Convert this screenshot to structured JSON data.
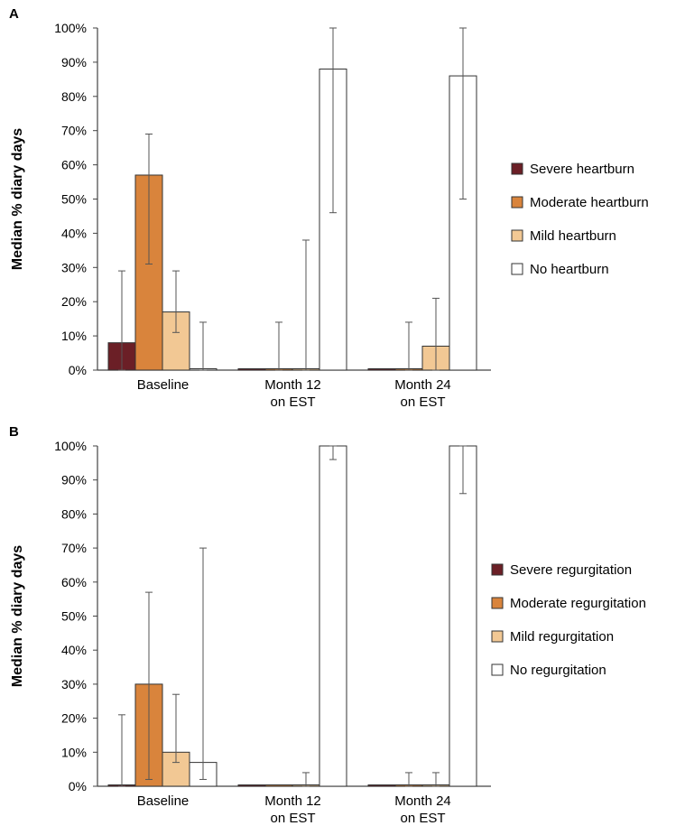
{
  "chart_data": [
    {
      "panel_label": "A",
      "type": "bar",
      "ylabel": "Median % diary days",
      "ylim": [
        0,
        100
      ],
      "yticks": [
        "0%",
        "10%",
        "20%",
        "30%",
        "40%",
        "50%",
        "60%",
        "70%",
        "80%",
        "90%",
        "100%"
      ],
      "categories": [
        [
          "Baseline"
        ],
        [
          "Month 12",
          "on EST"
        ],
        [
          "Month 24",
          "on EST"
        ]
      ],
      "legend_position": "right",
      "series": [
        {
          "name": "Severe heartburn",
          "color": "#6b1f26",
          "values": [
            8,
            0,
            0
          ],
          "err_low": [
            0,
            0,
            0
          ],
          "err_high": [
            29,
            0,
            0
          ]
        },
        {
          "name": "Moderate heartburn",
          "color": "#d9843c",
          "values": [
            57,
            0,
            0
          ],
          "err_low": [
            31,
            0,
            0
          ],
          "err_high": [
            69,
            14,
            14
          ]
        },
        {
          "name": "Mild heartburn",
          "color": "#f2c894",
          "values": [
            17,
            0,
            7
          ],
          "err_low": [
            11,
            0,
            0
          ],
          "err_high": [
            29,
            38,
            21
          ]
        },
        {
          "name": "No heartburn",
          "color": "#ffffff",
          "values": [
            0,
            88,
            86
          ],
          "err_low": [
            0,
            46,
            50
          ],
          "err_high": [
            14,
            100,
            100
          ]
        }
      ]
    },
    {
      "panel_label": "B",
      "type": "bar",
      "ylabel": "Median % diary days",
      "ylim": [
        0,
        100
      ],
      "yticks": [
        "0%",
        "10%",
        "20%",
        "30%",
        "40%",
        "50%",
        "60%",
        "70%",
        "80%",
        "90%",
        "100%"
      ],
      "categories": [
        [
          "Baseline"
        ],
        [
          "Month 12",
          "on EST"
        ],
        [
          "Month 24",
          "on EST"
        ]
      ],
      "legend_position": "right",
      "series": [
        {
          "name": "Severe regurgitation",
          "color": "#6b1f26",
          "values": [
            0,
            0,
            0
          ],
          "err_low": [
            0,
            0,
            0
          ],
          "err_high": [
            21,
            0,
            0
          ]
        },
        {
          "name": "Moderate regurgitation",
          "color": "#d9843c",
          "values": [
            30,
            0,
            0
          ],
          "err_low": [
            2,
            0,
            0
          ],
          "err_high": [
            57,
            0,
            4
          ]
        },
        {
          "name": "Mild regurgitation",
          "color": "#f2c894",
          "values": [
            10,
            0,
            0
          ],
          "err_low": [
            7,
            0,
            0
          ],
          "err_high": [
            27,
            4,
            4
          ]
        },
        {
          "name": "No regurgitation",
          "color": "#ffffff",
          "values": [
            7,
            100,
            100
          ],
          "err_low": [
            2,
            96,
            86
          ],
          "err_high": [
            70,
            100,
            100
          ]
        }
      ]
    }
  ]
}
